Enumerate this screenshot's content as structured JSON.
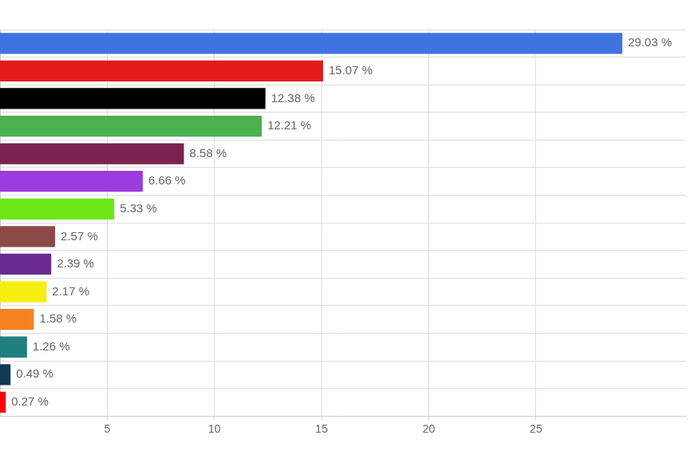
{
  "chart_data": {
    "type": "bar",
    "orientation": "horizontal",
    "categories": [
      null,
      null,
      null,
      null,
      null,
      null,
      null,
      null,
      null,
      null,
      null,
      null,
      null,
      null
    ],
    "values": [
      29.03,
      15.07,
      12.38,
      12.21,
      8.58,
      6.66,
      5.33,
      2.57,
      2.39,
      2.17,
      1.58,
      1.26,
      0.49,
      0.27
    ],
    "value_labels": [
      "29.03 %",
      "15.07 %",
      "12.38 %",
      "12.21 %",
      "8.58 %",
      "6.66 %",
      "5.33 %",
      "2.57 %",
      "2.39 %",
      "2.17 %",
      "1.58 %",
      "1.26 %",
      "0.49 %",
      "0.27 %"
    ],
    "colors": [
      "#3f74e0",
      "#e31a1c",
      "#000000",
      "#4caf50",
      "#7b2350",
      "#9b3be0",
      "#6ee616",
      "#8b4a48",
      "#6a2a90",
      "#f5ee10",
      "#f58220",
      "#1f8080",
      "#123a55",
      "#ff0000"
    ],
    "xlim": [
      0,
      32
    ],
    "xticks": [
      5,
      10,
      15,
      20,
      25
    ],
    "grid": true,
    "data_labels": true,
    "tick_labels": "x"
  }
}
